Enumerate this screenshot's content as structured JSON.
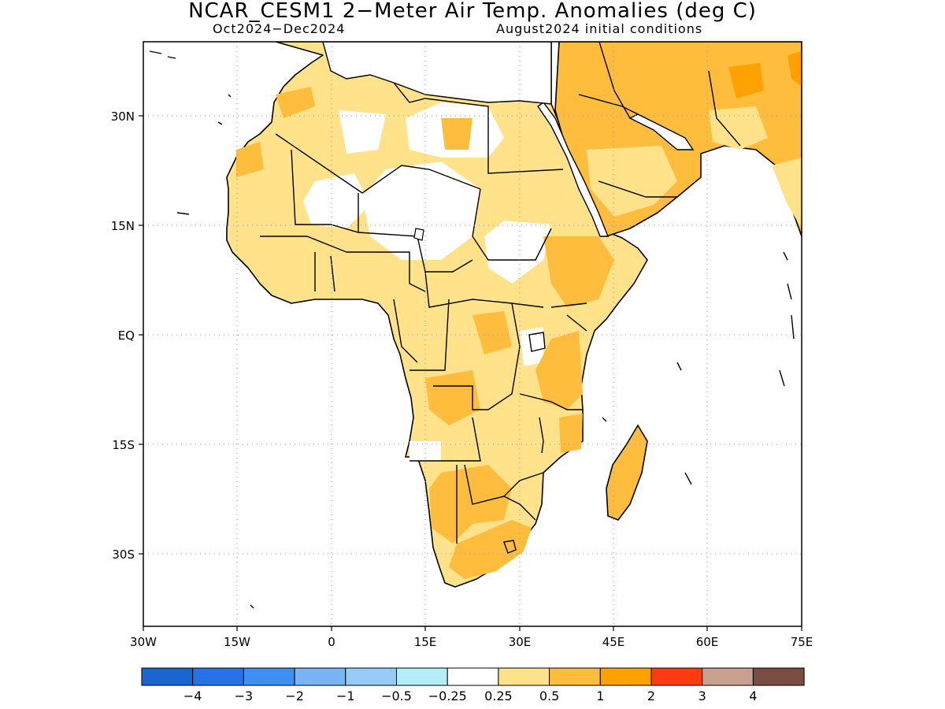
{
  "header": {
    "title": "NCAR_CESM1 2−Meter Air Temp. Anomalies (deg C)",
    "period": "Oct2024−Dec2024",
    "init": "August2024 initial conditions"
  },
  "map": {
    "lat_ticks": [
      "30N",
      "15N",
      "EQ",
      "15S",
      "30S"
    ],
    "lon_ticks": [
      "30W",
      "15W",
      "0",
      "15E",
      "30E",
      "45E",
      "60E",
      "75E"
    ],
    "lon_range": [
      -30,
      75
    ],
    "lat_range": [
      -40,
      40
    ],
    "grid": "dotted"
  },
  "colorbar": {
    "colors": [
      "#1a66d0",
      "#2672e6",
      "#3d8ff0",
      "#79b4f5",
      "#97cbf7",
      "#b3eef8",
      "#ffffff",
      "#ffe289",
      "#ffbd3d",
      "#ffa100",
      "#ff3b12",
      "#c8a090",
      "#7a4d42"
    ],
    "labels": [
      "−4",
      "−3",
      "−2",
      "−1",
      "−0.5",
      "−0.25",
      "0.25",
      "0.5",
      "1",
      "2",
      "3",
      "4"
    ]
  }
}
